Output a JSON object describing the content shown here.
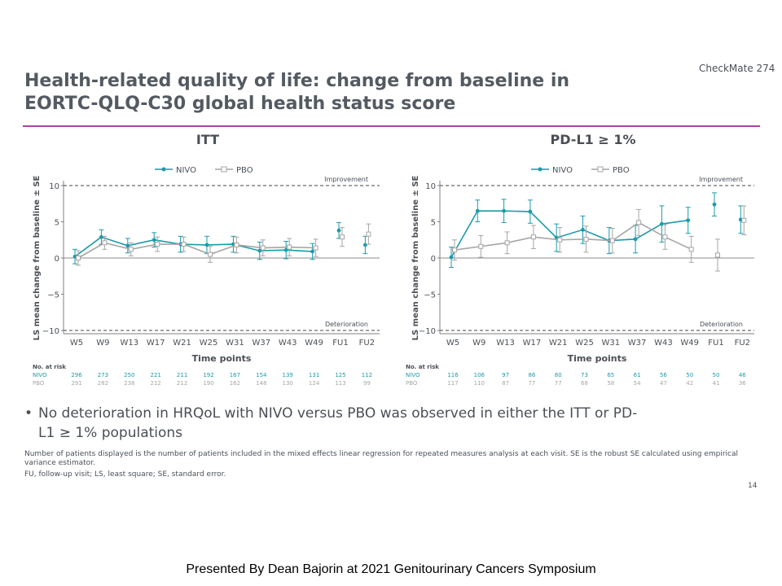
{
  "slide": {
    "badge": "CheckMate 274",
    "title_line1": "Health-related quality of life: change from baseline in",
    "title_line2": "EORTC-QLQ-C30 global health status score",
    "bullet_symbol": "•",
    "bullet": "No deterioration in HRQoL with NIVO versus PBO was observed in either the ITT or PD-L1 ≥ 1% populations",
    "footnote_line1": "Number of patients displayed is the number of patients included in the mixed effects linear regression for repeated measures analysis at each visit. SE is the robust SE calculated using empirical variance estimator.",
    "footnote_line2": "FU, follow-up visit; LS, least square; SE, standard error.",
    "page_number": "14",
    "presenter": "Presented By Dean Bajorin at 2021 Genitourinary  Cancers Symposium",
    "colors": {
      "nivo": "#1a9bab",
      "pbo": "#a5a5a5",
      "rule": "#b13fa6",
      "text": "#545a62"
    }
  },
  "chart_data": [
    {
      "type": "line",
      "title": "ITT",
      "xlabel": "Time points",
      "ylabel": "LS mean change from baseline ± SE",
      "ylim": [
        -10,
        10
      ],
      "yticks": [
        "10",
        "5",
        "0",
        "−5",
        "−10"
      ],
      "improvement_label": "Improvement",
      "deterioration_label": "Deterioration",
      "categories": [
        "W5",
        "W9",
        "W13",
        "W17",
        "W21",
        "W25",
        "W31",
        "W37",
        "W43",
        "W49",
        "FU1",
        "FU2"
      ],
      "series": [
        {
          "name": "NIVO",
          "values": [
            0.2,
            2.9,
            1.7,
            2.5,
            1.9,
            1.8,
            1.9,
            1.0,
            1.1,
            0.9,
            3.8,
            1.8
          ],
          "se": [
            1.0,
            1.0,
            1.0,
            1.0,
            1.1,
            1.2,
            1.1,
            1.2,
            1.2,
            1.1,
            1.1,
            1.2
          ]
        },
        {
          "name": "PBO",
          "values": [
            0.0,
            2.1,
            1.2,
            1.9,
            1.9,
            0.5,
            1.8,
            1.4,
            1.5,
            1.4,
            2.9,
            3.3
          ],
          "se": [
            1.0,
            0.9,
            0.9,
            1.0,
            1.0,
            1.1,
            1.1,
            1.1,
            1.2,
            1.2,
            1.3,
            1.4
          ]
        }
      ],
      "at_risk_label": "No. at risk",
      "at_risk": [
        {
          "name": "NIVO",
          "values": [
            "296",
            "273",
            "250",
            "221",
            "211",
            "192",
            "167",
            "154",
            "139",
            "131",
            "125",
            "112"
          ]
        },
        {
          "name": "PBO",
          "values": [
            "291",
            "282",
            "238",
            "212",
            "212",
            "190",
            "162",
            "148",
            "130",
            "124",
            "113",
            "99"
          ]
        }
      ],
      "legend": "top-center",
      "grid": false
    },
    {
      "type": "line",
      "title": "PD-L1 ≥ 1%",
      "xlabel": "Time points",
      "ylabel": "LS mean change from baseline ± SE",
      "ylim": [
        -10,
        10
      ],
      "yticks": [
        "10",
        "5",
        "0",
        "−5",
        "−10"
      ],
      "improvement_label": "Improvement",
      "deterioration_label": "Deterioration",
      "categories": [
        "W5",
        "W9",
        "W13",
        "W17",
        "W21",
        "W25",
        "W31",
        "W37",
        "W43",
        "W49",
        "FU1",
        "FU2"
      ],
      "series": [
        {
          "name": "NIVO",
          "values": [
            0.1,
            6.5,
            6.5,
            6.4,
            2.8,
            3.9,
            2.4,
            2.6,
            4.7,
            5.2,
            7.4,
            5.3
          ],
          "se": [
            1.4,
            1.5,
            1.6,
            1.6,
            1.9,
            1.9,
            1.8,
            1.9,
            2.5,
            1.8,
            1.6,
            1.9
          ]
        },
        {
          "name": "PBO",
          "values": [
            1.1,
            1.6,
            2.1,
            2.9,
            2.5,
            2.6,
            2.4,
            4.9,
            2.9,
            1.2,
            0.4,
            5.2
          ],
          "se": [
            1.4,
            1.5,
            1.5,
            1.6,
            1.7,
            1.8,
            1.7,
            1.8,
            1.7,
            1.8,
            2.2,
            2.0
          ]
        }
      ],
      "at_risk_label": "No. at risk",
      "at_risk": [
        {
          "name": "NIVO",
          "values": [
            "116",
            "106",
            "97",
            "86",
            "80",
            "73",
            "65",
            "61",
            "56",
            "50",
            "50",
            "46"
          ]
        },
        {
          "name": "PBO",
          "values": [
            "117",
            "110",
            "87",
            "77",
            "77",
            "68",
            "58",
            "54",
            "47",
            "42",
            "41",
            "36"
          ]
        }
      ],
      "legend": "top-center",
      "grid": false
    }
  ]
}
